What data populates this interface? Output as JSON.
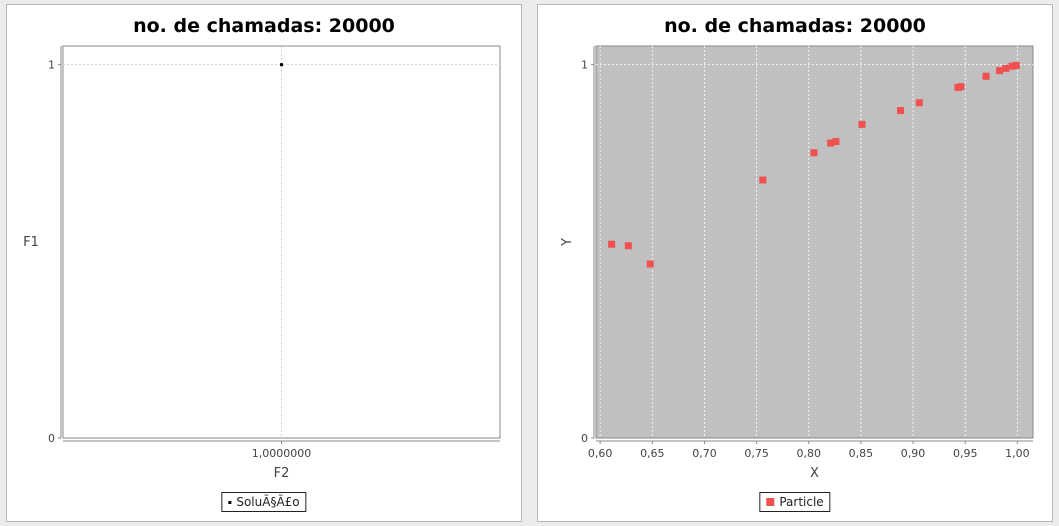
{
  "chart_data": [
    {
      "type": "scatter",
      "title": "no. de chamadas: 20000",
      "xlabel": "F2",
      "ylabel": "F1",
      "xlim": [
        0.0,
        2.0
      ],
      "ylim": [
        0,
        1.05
      ],
      "x_ticks": [
        1.0
      ],
      "x_tick_labels": [
        "1,0000000"
      ],
      "y_ticks": [
        0,
        1
      ],
      "y_tick_labels": [
        "0",
        "1"
      ],
      "grid": true,
      "background": "#ffffff",
      "legend_position": "bottom",
      "series": [
        {
          "name": "SoluÃ§Ã£o",
          "color": "#000000",
          "marker": "square",
          "points": [
            [
              1.0,
              1.0
            ]
          ]
        }
      ]
    },
    {
      "type": "scatter",
      "title": "no. de chamadas: 20000",
      "xlabel": "X",
      "ylabel": "Y",
      "xlim": [
        0.596,
        1.015
      ],
      "ylim": [
        0,
        1.05
      ],
      "x_ticks": [
        0.6,
        0.65,
        0.7,
        0.75,
        0.8,
        0.85,
        0.9,
        0.95,
        1.0
      ],
      "x_tick_labels": [
        "0,60",
        "0,65",
        "0,70",
        "0,75",
        "0,80",
        "0,85",
        "0,90",
        "0,95",
        "1,00"
      ],
      "y_ticks": [
        0,
        1
      ],
      "y_tick_labels": [
        "0",
        "1"
      ],
      "grid": true,
      "background": "#c0c0c0",
      "legend_position": "bottom",
      "series": [
        {
          "name": "Particle",
          "color": "#f05050",
          "marker": "square",
          "points": [
            [
              0.611,
              0.519
            ],
            [
              0.627,
              0.515
            ],
            [
              0.648,
              0.466
            ],
            [
              0.756,
              0.691
            ],
            [
              0.805,
              0.764
            ],
            [
              0.821,
              0.79
            ],
            [
              0.826,
              0.794
            ],
            [
              0.851,
              0.84
            ],
            [
              0.888,
              0.877
            ],
            [
              0.906,
              0.898
            ],
            [
              0.943,
              0.939
            ],
            [
              0.946,
              0.941
            ],
            [
              0.97,
              0.969
            ],
            [
              0.983,
              0.984
            ],
            [
              0.989,
              0.99
            ],
            [
              0.995,
              0.996
            ],
            [
              0.999,
              0.998
            ]
          ]
        }
      ]
    }
  ]
}
